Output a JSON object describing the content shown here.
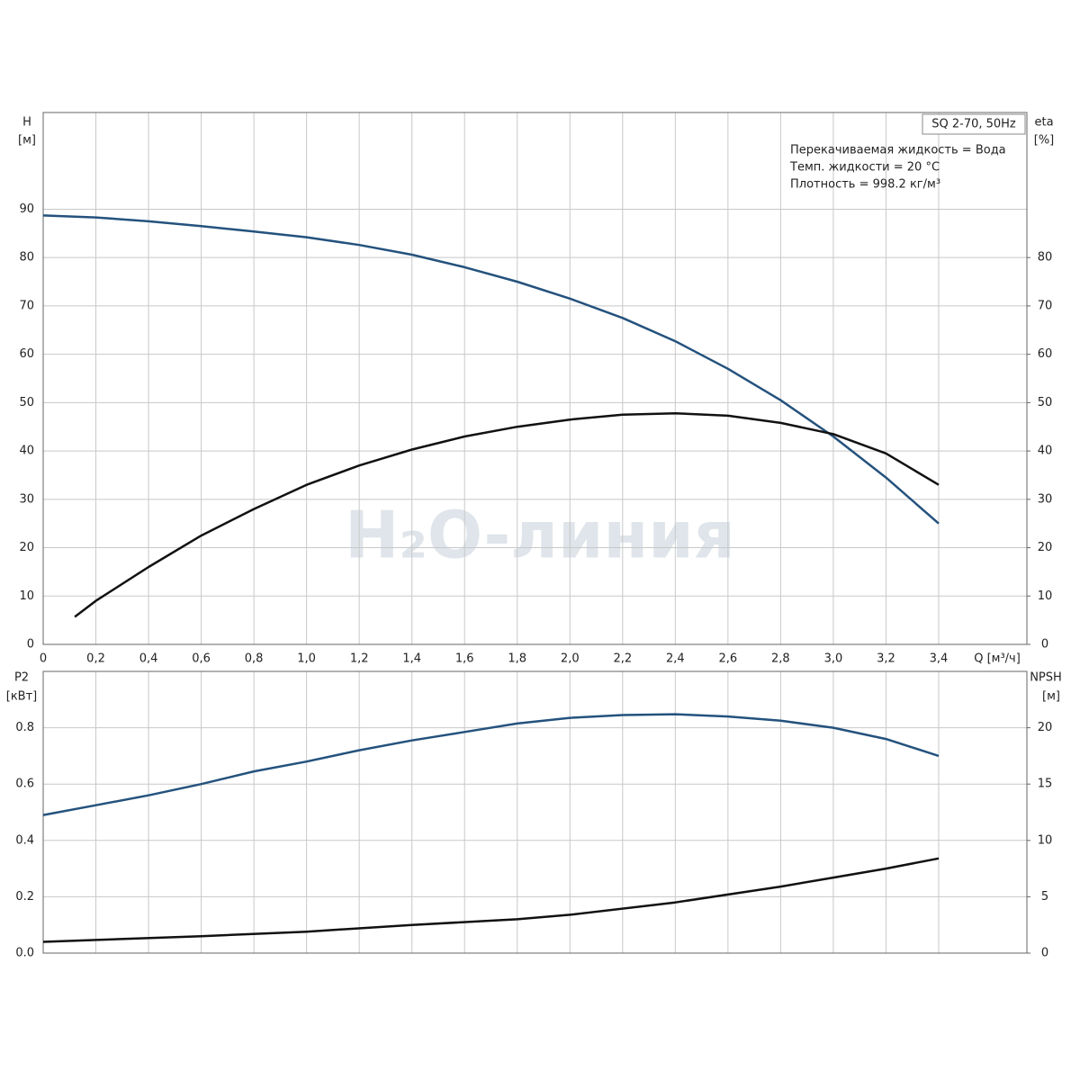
{
  "chart_data": [
    {
      "type": "line",
      "ylabel": "H",
      "yunit": "[м]",
      "y2label": "eta",
      "y2unit": "[%]",
      "xlabel": "Q [м³/ч]",
      "box_title": "SQ 2-70, 50Hz",
      "notes": [
        "Перекачиваемая жидкость = Вода",
        "Темп. жидкости = 20 °C",
        "Плотность = 998.2 кг/м³"
      ],
      "watermark": "H₂O-линия",
      "xlim": [
        0,
        3.735
      ],
      "xticks": [
        0,
        {
          "value": 0.2,
          "label": "0,2"
        },
        {
          "value": 0.4,
          "label": "0,4"
        },
        {
          "value": 0.6,
          "label": "0,6"
        },
        {
          "value": 0.8,
          "label": "0,8"
        },
        {
          "value": 1.0,
          "label": "1,0"
        },
        {
          "value": 1.2,
          "label": "1,2"
        },
        {
          "value": 1.4,
          "label": "1,4"
        },
        {
          "value": 1.6,
          "label": "1,6"
        },
        {
          "value": 1.8,
          "label": "1,8"
        },
        {
          "value": 2.0,
          "label": "2,0"
        },
        {
          "value": 2.2,
          "label": "2,2"
        },
        {
          "value": 2.4,
          "label": "2,4"
        },
        {
          "value": 2.6,
          "label": "2,6"
        },
        {
          "value": 2.8,
          "label": "2,8"
        },
        {
          "value": 3.0,
          "label": "3,0"
        },
        {
          "value": 3.2,
          "label": "3,2"
        },
        {
          "value": 3.4,
          "label": "3,4"
        }
      ],
      "ylim": [
        0,
        110
      ],
      "yticks": [
        0,
        10,
        20,
        30,
        40,
        50,
        60,
        70,
        80,
        90
      ],
      "y2lim": [
        0,
        110
      ],
      "y2ticks": [
        0,
        10,
        20,
        30,
        40,
        50,
        60,
        70,
        80
      ],
      "series": [
        {
          "color": "#24527d",
          "x": [
            0,
            0.2,
            0.4,
            0.6,
            0.8,
            1.0,
            1.2,
            1.4,
            1.6,
            1.8,
            2.0,
            2.2,
            2.4,
            2.6,
            2.8,
            3.0,
            3.2,
            3.4
          ],
          "values": [
            88.7,
            88.3,
            87.5,
            86.5,
            85.4,
            84.2,
            82.6,
            80.6,
            78,
            75,
            71.5,
            67.5,
            62.7,
            57,
            50.5,
            43,
            34.5,
            25
          ]
        },
        {
          "color": "#111111",
          "axis": "y2",
          "x": [
            0.12,
            0.2,
            0.4,
            0.6,
            0.8,
            1.0,
            1.2,
            1.4,
            1.6,
            1.8,
            2.0,
            2.2,
            2.4,
            2.6,
            2.8,
            3.0,
            3.2,
            3.4
          ],
          "values": [
            5.7,
            9,
            16,
            22.5,
            28,
            33,
            37,
            40.3,
            43,
            45,
            46.5,
            47.5,
            47.8,
            47.3,
            45.8,
            43.5,
            39.5,
            33
          ]
        }
      ]
    },
    {
      "type": "line",
      "ylabel": "P2",
      "yunit": "[кВт]",
      "y2label": "NPSH",
      "y2unit": "[м]",
      "xlim": [
        0,
        3.735
      ],
      "ylim": [
        0,
        1.0
      ],
      "yticks": [
        {
          "value": 0,
          "label": "0.0"
        },
        0.2,
        0.4,
        0.6,
        0.8
      ],
      "y2lim": [
        0,
        25
      ],
      "y2ticks": [
        0,
        5,
        10,
        15,
        20
      ],
      "series": [
        {
          "color": "#24527d",
          "x": [
            0,
            0.2,
            0.4,
            0.6,
            0.8,
            1.0,
            1.2,
            1.4,
            1.6,
            1.8,
            2.0,
            2.2,
            2.4,
            2.6,
            2.8,
            3.0,
            3.2,
            3.4
          ],
          "values": [
            0.49,
            0.525,
            0.56,
            0.6,
            0.645,
            0.68,
            0.72,
            0.755,
            0.785,
            0.815,
            0.835,
            0.845,
            0.848,
            0.84,
            0.825,
            0.8,
            0.76,
            0.7
          ]
        },
        {
          "color": "#111111",
          "axis": "y2",
          "x": [
            0,
            0.6,
            1.0,
            1.4,
            1.8,
            2.0,
            2.4,
            2.8,
            3.0,
            3.2,
            3.4
          ],
          "values": [
            1.0,
            1.5,
            1.9,
            2.5,
            3.0,
            3.4,
            4.5,
            5.9,
            6.7,
            7.5,
            8.4
          ]
        }
      ]
    }
  ]
}
